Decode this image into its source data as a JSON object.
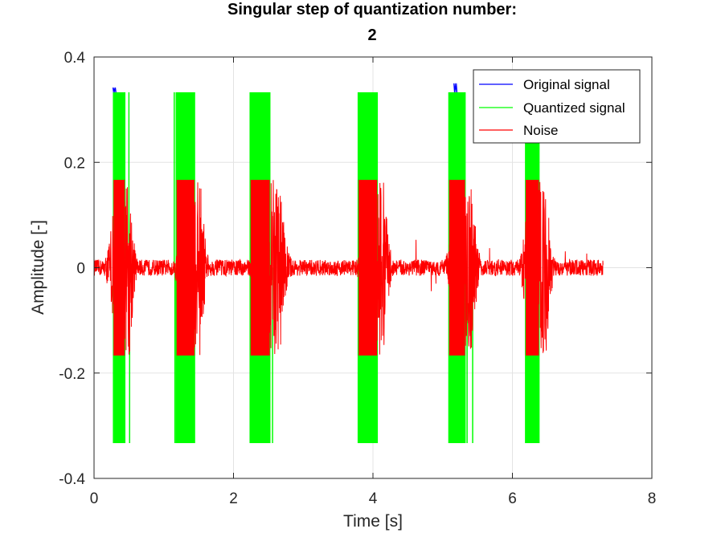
{
  "chart_data": {
    "type": "line",
    "title": "Singular step of quantization number:",
    "subtitle": "2",
    "xlabel": "Time [s]",
    "ylabel": "Amplitude [-]",
    "xlim": [
      0,
      8
    ],
    "ylim": [
      -0.4,
      0.4
    ],
    "xticks": [
      "0",
      "2",
      "4",
      "6",
      "8"
    ],
    "yticks": [
      "-0.4",
      "-0.2",
      "0",
      "0.2",
      "0.4"
    ],
    "grid": true,
    "legend_position": "top-right",
    "quantization_levels": [
      -0.333,
      0,
      0.333
    ],
    "noise_bound": 0.1667,
    "signal_duration": 7.3,
    "bursts": [
      {
        "start": 0.27,
        "end": 0.45,
        "tail": 0.63
      },
      {
        "start": 1.17,
        "end": 1.45,
        "tail": 1.66
      },
      {
        "start": 2.23,
        "end": 2.53,
        "tail": 2.85
      },
      {
        "start": 3.78,
        "end": 4.07,
        "tail": 4.3
      },
      {
        "start": 5.08,
        "end": 5.33,
        "tail": 5.56
      },
      {
        "start": 6.18,
        "end": 6.39,
        "tail": 6.62
      }
    ],
    "series": [
      {
        "name": "Original signal",
        "color": "#0000ff",
        "peak": 0.35
      },
      {
        "name": "Quantized signal",
        "color": "#00ff00",
        "levels": [
          -0.333,
          0,
          0.333
        ]
      },
      {
        "name": "Noise",
        "color": "#ff0000",
        "range": [
          -0.1667,
          0.1667
        ]
      }
    ]
  }
}
